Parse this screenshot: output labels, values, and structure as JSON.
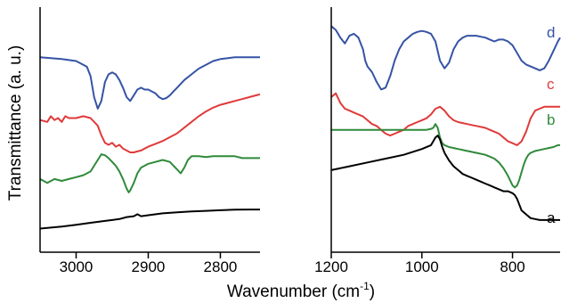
{
  "chart_data": {
    "type": "line",
    "ylabel": "Transmittance (a. u.)",
    "xlabel": "Wavenumber (cm",
    "xlabel_superscript": "-1",
    "xlabel_suffix": ")",
    "y_ticks_shown": false,
    "grid": false,
    "panels": [
      {
        "id": "left",
        "xlim": [
          3050,
          2745
        ],
        "xticks": [
          3000,
          2900,
          2800
        ],
        "xtick_labels": [
          "3000",
          "2900",
          "2800"
        ],
        "series": [
          {
            "id": "d",
            "color": "#3653a5",
            "x": [
              3050,
              3020,
              3000,
              2985,
              2980,
              2975,
              2970,
              2965,
              2960,
              2955,
              2950,
              2945,
              2940,
              2935,
              2930,
              2925,
              2920,
              2915,
              2910,
              2905,
              2900,
              2895,
              2890,
              2885,
              2880,
              2875,
              2870,
              2865,
              2860,
              2850,
              2840,
              2830,
              2820,
              2810,
              2800,
              2790,
              2780,
              2770,
              2760,
              2750,
              2745
            ],
            "y": [
              0.84,
              0.83,
              0.82,
              0.79,
              0.74,
              0.63,
              0.57,
              0.61,
              0.71,
              0.75,
              0.76,
              0.75,
              0.72,
              0.68,
              0.63,
              0.61,
              0.64,
              0.67,
              0.68,
              0.67,
              0.67,
              0.66,
              0.65,
              0.63,
              0.62,
              0.625,
              0.64,
              0.66,
              0.68,
              0.72,
              0.75,
              0.78,
              0.8,
              0.82,
              0.83,
              0.835,
              0.84,
              0.84,
              0.84,
              0.84,
              0.84
            ]
          },
          {
            "id": "c",
            "color": "#e03a3a",
            "x": [
              3050,
              3040,
              3035,
              3030,
              3025,
              3020,
              3015,
              3010,
              3000,
              2990,
              2980,
              2970,
              2965,
              2960,
              2955,
              2950,
              2945,
              2940,
              2935,
              2930,
              2925,
              2920,
              2915,
              2910,
              2905,
              2900,
              2890,
              2880,
              2870,
              2860,
              2850,
              2840,
              2830,
              2820,
              2810,
              2800,
              2790,
              2780,
              2770,
              2760,
              2750,
              2745
            ],
            "y": [
              0.51,
              0.5,
              0.53,
              0.51,
              0.52,
              0.5,
              0.53,
              0.52,
              0.52,
              0.53,
              0.52,
              0.48,
              0.43,
              0.39,
              0.38,
              0.39,
              0.37,
              0.38,
              0.36,
              0.35,
              0.34,
              0.34,
              0.345,
              0.35,
              0.36,
              0.37,
              0.385,
              0.4,
              0.42,
              0.44,
              0.47,
              0.5,
              0.53,
              0.555,
              0.575,
              0.59,
              0.6,
              0.61,
              0.62,
              0.63,
              0.64,
              0.645
            ]
          },
          {
            "id": "b",
            "color": "#2f8a3a",
            "x": [
              3050,
              3040,
              3030,
              3020,
              3010,
              3000,
              2990,
              2980,
              2975,
              2970,
              2965,
              2960,
              2955,
              2950,
              2945,
              2940,
              2935,
              2930,
              2927,
              2925,
              2920,
              2915,
              2910,
              2900,
              2890,
              2880,
              2870,
              2865,
              2860,
              2855,
              2850,
              2845,
              2840,
              2830,
              2820,
              2810,
              2800,
              2790,
              2780,
              2770,
              2760,
              2750,
              2745
            ],
            "y": [
              0.2,
              0.18,
              0.2,
              0.19,
              0.2,
              0.21,
              0.22,
              0.24,
              0.27,
              0.3,
              0.33,
              0.325,
              0.31,
              0.29,
              0.27,
              0.24,
              0.2,
              0.15,
              0.13,
              0.14,
              0.18,
              0.23,
              0.26,
              0.28,
              0.29,
              0.3,
              0.29,
              0.27,
              0.25,
              0.23,
              0.26,
              0.3,
              0.32,
              0.32,
              0.315,
              0.32,
              0.32,
              0.32,
              0.32,
              0.31,
              0.31,
              0.31,
              0.31
            ]
          },
          {
            "id": "a",
            "color": "#000000",
            "x": [
              3050,
              3020,
              3000,
              2980,
              2960,
              2940,
              2930,
              2920,
              2915,
              2910,
              2900,
              2880,
              2860,
              2840,
              2820,
              2800,
              2780,
              2760,
              2745
            ],
            "y": [
              -0.06,
              -0.05,
              -0.04,
              -0.03,
              -0.02,
              -0.01,
              0.0,
              0.005,
              0.015,
              0.005,
              0.01,
              0.02,
              0.025,
              0.03,
              0.033,
              0.036,
              0.039,
              0.04,
              0.04
            ]
          }
        ]
      },
      {
        "id": "right",
        "xlim": [
          1200,
          695
        ],
        "xticks": [
          1200,
          1000,
          800
        ],
        "xtick_labels": [
          "1200",
          "1000",
          "800"
        ],
        "series": [
          {
            "id": "d",
            "color": "#3653a5",
            "label": "d",
            "x": [
              1200,
              1190,
              1180,
              1170,
              1160,
              1150,
              1140,
              1130,
              1125,
              1120,
              1110,
              1100,
              1090,
              1080,
              1070,
              1060,
              1050,
              1040,
              1030,
              1020,
              1010,
              1000,
              990,
              980,
              970,
              960,
              950,
              940,
              930,
              920,
              910,
              900,
              890,
              880,
              870,
              860,
              850,
              840,
              830,
              820,
              810,
              800,
              790,
              780,
              770,
              760,
              750,
              740,
              730,
              720,
              710,
              700,
              695
            ],
            "y": [
              0.98,
              0.96,
              0.92,
              0.89,
              0.93,
              0.94,
              0.92,
              0.86,
              0.8,
              0.77,
              0.74,
              0.69,
              0.65,
              0.66,
              0.72,
              0.8,
              0.86,
              0.9,
              0.92,
              0.94,
              0.95,
              0.955,
              0.95,
              0.94,
              0.9,
              0.8,
              0.76,
              0.79,
              0.86,
              0.9,
              0.92,
              0.93,
              0.93,
              0.93,
              0.925,
              0.92,
              0.91,
              0.9,
              0.91,
              0.91,
              0.9,
              0.88,
              0.84,
              0.8,
              0.78,
              0.77,
              0.76,
              0.75,
              0.76,
              0.8,
              0.85,
              0.9,
              0.92
            ]
          },
          {
            "id": "c",
            "color": "#e03a3a",
            "label": "c",
            "x": [
              1200,
              1190,
              1180,
              1170,
              1160,
              1150,
              1140,
              1130,
              1120,
              1110,
              1100,
              1090,
              1080,
              1070,
              1060,
              1050,
              1040,
              1030,
              1020,
              1010,
              1000,
              990,
              980,
              970,
              960,
              950,
              940,
              930,
              920,
              910,
              900,
              890,
              880,
              870,
              860,
              850,
              840,
              830,
              820,
              810,
              800,
              790,
              780,
              770,
              760,
              750,
              740,
              730,
              720,
              710,
              700,
              695
            ],
            "y": [
              0.61,
              0.63,
              0.58,
              0.55,
              0.54,
              0.53,
              0.52,
              0.51,
              0.49,
              0.47,
              0.46,
              0.44,
              0.42,
              0.41,
              0.42,
              0.43,
              0.44,
              0.46,
              0.47,
              0.48,
              0.49,
              0.5,
              0.52,
              0.55,
              0.56,
              0.54,
              0.51,
              0.49,
              0.48,
              0.475,
              0.47,
              0.465,
              0.46,
              0.455,
              0.45,
              0.44,
              0.43,
              0.42,
              0.4,
              0.38,
              0.37,
              0.36,
              0.38,
              0.43,
              0.5,
              0.54,
              0.55,
              0.56,
              0.56,
              0.56,
              0.56,
              0.56
            ]
          },
          {
            "id": "b",
            "color": "#2f8a3a",
            "label": "b",
            "x": [
              1200,
              1180,
              1160,
              1140,
              1120,
              1100,
              1080,
              1060,
              1040,
              1020,
              1000,
              990,
              980,
              975,
              970,
              965,
              960,
              955,
              950,
              940,
              930,
              920,
              900,
              880,
              860,
              850,
              840,
              830,
              820,
              810,
              800,
              795,
              790,
              785,
              780,
              775,
              770,
              765,
              760,
              750,
              740,
              730,
              720,
              710,
              700,
              695
            ],
            "y": [
              0.44,
              0.44,
              0.44,
              0.44,
              0.44,
              0.44,
              0.44,
              0.44,
              0.44,
              0.44,
              0.44,
              0.44,
              0.445,
              0.45,
              0.47,
              0.45,
              0.4,
              0.37,
              0.36,
              0.35,
              0.345,
              0.34,
              0.33,
              0.32,
              0.31,
              0.3,
              0.29,
              0.27,
              0.24,
              0.2,
              0.15,
              0.14,
              0.15,
              0.18,
              0.22,
              0.26,
              0.29,
              0.31,
              0.32,
              0.33,
              0.335,
              0.34,
              0.345,
              0.35,
              0.36,
              0.36
            ]
          },
          {
            "id": "a",
            "color": "#000000",
            "label": "a",
            "x": [
              1200,
              1160,
              1120,
              1080,
              1040,
              1000,
              980,
              975,
              970,
              965,
              960,
              955,
              950,
              940,
              930,
              920,
              910,
              900,
              890,
              880,
              870,
              860,
              850,
              840,
              830,
              820,
              815,
              810,
              805,
              800,
              795,
              790,
              785,
              780,
              770,
              760,
              750,
              740,
              730,
              720,
              710,
              700,
              695
            ],
            "y": [
              0.23,
              0.25,
              0.27,
              0.29,
              0.31,
              0.34,
              0.36,
              0.38,
              0.4,
              0.41,
              0.39,
              0.35,
              0.32,
              0.28,
              0.25,
              0.23,
              0.21,
              0.2,
              0.19,
              0.18,
              0.17,
              0.16,
              0.15,
              0.14,
              0.13,
              0.12,
              0.12,
              0.12,
              0.115,
              0.11,
              0.1,
              0.08,
              0.05,
              0.02,
              0.0,
              -0.02,
              -0.025,
              -0.03,
              -0.03,
              -0.03,
              -0.03,
              -0.03,
              -0.03
            ]
          }
        ]
      }
    ]
  }
}
